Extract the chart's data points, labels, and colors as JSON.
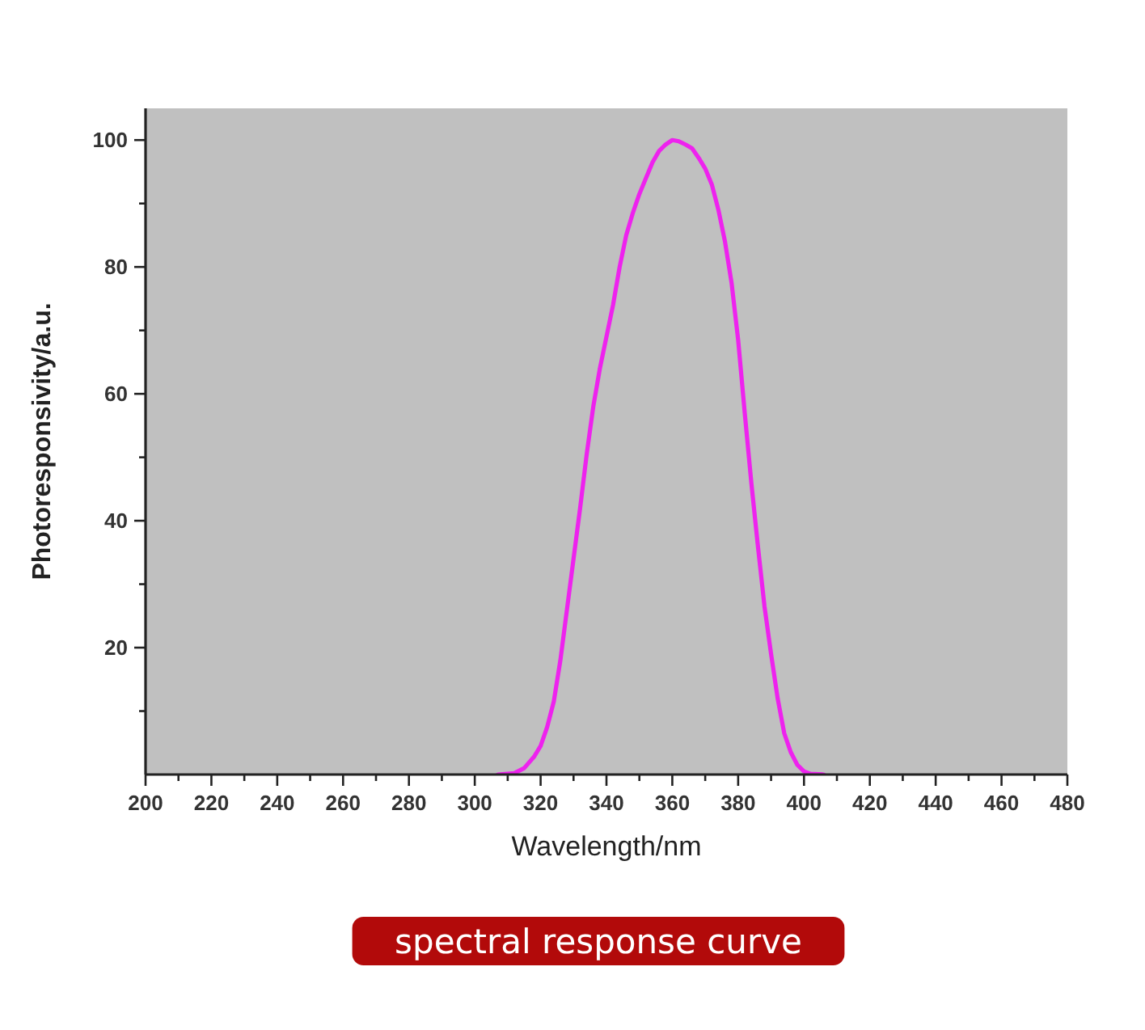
{
  "chart_data": {
    "type": "line",
    "xlabel": "Wavelength/nm",
    "ylabel": "Photoresponsivity/a.u.",
    "annotations": [
      "spectral response curve"
    ],
    "xlim": [
      200,
      480
    ],
    "ylim": [
      0,
      105
    ],
    "xticks": [
      200,
      {
        "value": 210,
        "label": null
      },
      220,
      {
        "value": 230,
        "label": null
      },
      240,
      {
        "value": 250,
        "label": null
      },
      260,
      {
        "value": 270,
        "label": null
      },
      280,
      {
        "value": 290,
        "label": null
      },
      300,
      {
        "value": 310,
        "label": null
      },
      320,
      {
        "value": 330,
        "label": null
      },
      340,
      {
        "value": 350,
        "label": null
      },
      360,
      {
        "value": 370,
        "label": null
      },
      380,
      {
        "value": 390,
        "label": null
      },
      400,
      {
        "value": 410,
        "label": null
      },
      420,
      {
        "value": 430,
        "label": null
      },
      440,
      {
        "value": 450,
        "label": null
      },
      460,
      {
        "value": 470,
        "label": null
      },
      480
    ],
    "yticks": [
      {
        "value": 10,
        "label": null
      },
      20,
      {
        "value": 30,
        "label": null
      },
      40,
      {
        "value": 50,
        "label": null
      },
      60,
      {
        "value": 70,
        "label": null
      },
      80,
      {
        "value": 90,
        "label": null
      },
      100
    ],
    "grid": false,
    "line_style": "solid",
    "series": [
      {
        "color": "#ee22ee",
        "x": [
          307,
          312,
          315,
          318,
          320,
          322,
          324,
          326,
          328,
          330,
          332,
          334,
          336,
          338,
          340,
          342,
          344,
          346,
          348,
          350,
          352,
          354,
          356,
          358,
          360,
          362,
          364,
          366,
          368,
          370,
          372,
          374,
          376,
          378,
          380,
          382,
          384,
          386,
          388,
          390,
          392,
          394,
          396,
          398,
          400,
          402,
          406
        ],
        "values": [
          0,
          0.2,
          1,
          2.8,
          4.5,
          7.5,
          11.5,
          18,
          26,
          34,
          42,
          50.5,
          58,
          64,
          69,
          74,
          80,
          85,
          88.5,
          91.5,
          94,
          96.5,
          98.3,
          99.3,
          100,
          99.8,
          99.3,
          98.7,
          97.2,
          95.5,
          93,
          89,
          84,
          77.5,
          68.5,
          57,
          46,
          36,
          26.5,
          19,
          12,
          6.5,
          3.5,
          1.5,
          0.5,
          0.1,
          0
        ]
      }
    ]
  }
}
